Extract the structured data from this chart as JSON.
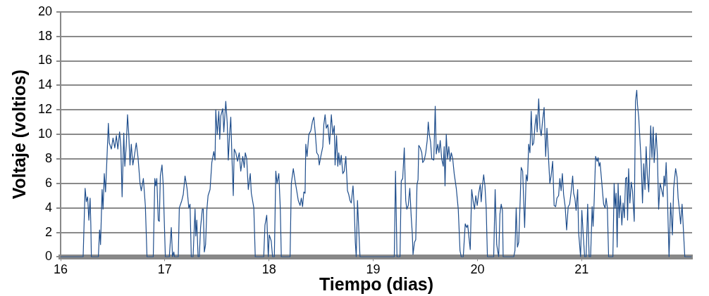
{
  "chart_data": {
    "type": "line",
    "xlabel": "Tiempo (dias)",
    "ylabel": "Voltaje (voltios)",
    "xlim": [
      16,
      22.06
    ],
    "xticks": [
      16,
      17,
      18,
      19,
      20,
      21
    ],
    "ylim": [
      0,
      20
    ],
    "yticks": [
      0,
      2,
      4,
      6,
      8,
      10,
      12,
      14,
      16,
      18,
      20
    ],
    "grid": "y",
    "legend": false,
    "marker": "none",
    "line_style": "solid",
    "series": [
      {
        "color": "#1f4e8c",
        "x": [
          16,
          16.216,
          16.235,
          16.247,
          16.259,
          16.271,
          16.283,
          16.29,
          16.295,
          16.362,
          16.374,
          16.383,
          16.398,
          16.407,
          16.419,
          16.431,
          16.441,
          16.458,
          16.467,
          16.487,
          16.503,
          16.52,
          16.535,
          16.549,
          16.566,
          16.578,
          16.59,
          16.606,
          16.616,
          16.63,
          16.642,
          16.654,
          16.666,
          16.678,
          16.693,
          16.707,
          16.726,
          16.743,
          16.762,
          16.774,
          16.794,
          16.813,
          16.829,
          16.889,
          16.904,
          16.913,
          16.923,
          16.937,
          16.947,
          16.957,
          16.973,
          16.985,
          17.005,
          17.043,
          17.062,
          17.074,
          17.086,
          17.093,
          17.129,
          17.139,
          17.163,
          17.177,
          17.194,
          17.213,
          17.23,
          17.242,
          17.254,
          17.271,
          17.29,
          17.297,
          17.307,
          17.319,
          17.331,
          17.343,
          17.36,
          17.369,
          17.379,
          17.391,
          17.403,
          17.415,
          17.434,
          17.451,
          17.47,
          17.482,
          17.489,
          17.503,
          17.518,
          17.527,
          17.537,
          17.556,
          17.566,
          17.585,
          17.599,
          17.609,
          17.621,
          17.633,
          17.645,
          17.657,
          17.666,
          17.681,
          17.698,
          17.714,
          17.729,
          17.748,
          17.762,
          17.772,
          17.786,
          17.801,
          17.82,
          17.83,
          17.854,
          17.868,
          17.949,
          17.961,
          17.978,
          17.993,
          18.002,
          18.021,
          18.034,
          18.051,
          18.065,
          18.077,
          18.094,
          18.108,
          18.118,
          18.202,
          18.214,
          18.233,
          18.25,
          18.262,
          18.281,
          18.298,
          18.31,
          18.322,
          18.334,
          18.346,
          18.353,
          18.365,
          18.382,
          18.401,
          18.418,
          18.43,
          18.444,
          18.458,
          18.473,
          18.482,
          18.497,
          18.516,
          18.526,
          18.538,
          18.55,
          18.564,
          18.581,
          18.598,
          18.612,
          18.626,
          18.634,
          18.648,
          18.66,
          18.669,
          18.681,
          18.693,
          18.708,
          18.722,
          18.737,
          18.753,
          18.765,
          18.777,
          18.789,
          18.806,
          18.818,
          18.828,
          18.837,
          18.849,
          18.873,
          19.202,
          19.214,
          19.228,
          19.257,
          19.269,
          19.283,
          19.298,
          19.312,
          19.322,
          19.336,
          19.351,
          19.365,
          19.375,
          19.382,
          19.396,
          19.408,
          19.42,
          19.43,
          19.437,
          19.451,
          19.466,
          19.475,
          19.49,
          19.504,
          19.518,
          19.528,
          19.538,
          19.55,
          19.562,
          19.581,
          19.595,
          19.605,
          19.619,
          19.631,
          19.643,
          19.657,
          19.672,
          19.681,
          19.689,
          19.701,
          19.713,
          19.725,
          19.737,
          19.749,
          19.763,
          19.777,
          19.797,
          19.816,
          19.833,
          19.845,
          19.864,
          19.883,
          19.897,
          19.907,
          19.916,
          19.931,
          19.945,
          19.96,
          19.972,
          19.984,
          19.998,
          20.012,
          20.027,
          20.036,
          20.048,
          20.06,
          20.072,
          20.084,
          20.096,
          20.156,
          20.17,
          20.185,
          20.204,
          20.216,
          20.228,
          20.24,
          20.247,
          20.348,
          20.36,
          20.372,
          20.384,
          20.396,
          20.408,
          20.42,
          20.434,
          20.453,
          20.468,
          20.48,
          20.492,
          20.504,
          20.516,
          20.528,
          20.54,
          20.552,
          20.564,
          20.573,
          20.588,
          20.6,
          20.612,
          20.624,
          20.64,
          20.655,
          20.667,
          20.679,
          20.695,
          20.707,
          20.722,
          20.736,
          20.751,
          20.763,
          20.779,
          20.791,
          20.803,
          20.815,
          20.827,
          20.842,
          20.856,
          20.871,
          20.885,
          20.899,
          20.914,
          20.923,
          20.935,
          20.947,
          20.962,
          20.971,
          20.99,
          21.002,
          21.014,
          21.029,
          21.043,
          21.058,
          21.072,
          21.086,
          21.101,
          21.11,
          21.12,
          21.134,
          21.149,
          21.158,
          21.168,
          21.177,
          21.192,
          21.211,
          21.225,
          21.235,
          21.247,
          21.259,
          21.3,
          21.312,
          21.321,
          21.331,
          21.341,
          21.35,
          21.36,
          21.372,
          21.386,
          21.398,
          21.41,
          21.422,
          21.433,
          21.441,
          21.451,
          21.463,
          21.476,
          21.488,
          21.505,
          21.517,
          21.529,
          21.536,
          21.548,
          21.56,
          21.572,
          21.584,
          21.596,
          21.608,
          21.619,
          21.631,
          21.644,
          21.663,
          21.675,
          21.687,
          21.696,
          21.715,
          21.727,
          21.739,
          21.753,
          21.767,
          21.782,
          21.791,
          21.801,
          21.811,
          21.823,
          21.839,
          21.854,
          21.871,
          21.883,
          21.902,
          21.916,
          21.926,
          21.935,
          21.95,
          21.964,
          21.978,
          21.99,
          22.055
        ],
        "values": [
          0,
          0,
          5.6,
          4.5,
          4.9,
          3.0,
          4.8,
          2.6,
          0,
          0,
          2.2,
          1.0,
          5.5,
          3.9,
          6.8,
          5.3,
          7.3,
          10.9,
          9.3,
          8.8,
          9.7,
          8.9,
          9.9,
          8.8,
          10.2,
          9.0,
          4.9,
          10.1,
          7.4,
          9.1,
          11.6,
          10.0,
          7.5,
          9.2,
          7.5,
          8.2,
          9.3,
          8.1,
          6.0,
          5.4,
          6.4,
          4.2,
          0,
          0,
          6.4,
          5.8,
          6.4,
          3.0,
          2.9,
          6.6,
          7.5,
          5.8,
          0,
          0,
          2.4,
          0,
          0.4,
          0,
          0,
          4.0,
          4.6,
          5.1,
          6.6,
          5.6,
          4.0,
          4.3,
          0,
          0,
          3.9,
          1.7,
          3.0,
          0,
          0,
          2.4,
          3.9,
          3.9,
          0.4,
          1.0,
          3.8,
          5.0,
          5.5,
          7.7,
          8.6,
          7.9,
          12.0,
          10.0,
          11.9,
          9.6,
          11.5,
          12.1,
          10.2,
          12.7,
          10.9,
          7.9,
          9.9,
          11.4,
          7.9,
          5.0,
          8.8,
          8.5,
          7.8,
          8.5,
          7.0,
          8.2,
          7.3,
          8.5,
          8.0,
          5.5,
          6.8,
          5.2,
          4.0,
          0,
          0,
          2.6,
          3.4,
          0,
          1.8,
          1.3,
          0,
          0,
          7.0,
          6.0,
          6.8,
          4.0,
          0,
          0,
          6.0,
          7.2,
          6.2,
          5.6,
          4.6,
          4.2,
          4.8,
          4.1,
          5.3,
          5.2,
          9.2,
          8.2,
          10.0,
          10.3,
          11.1,
          11.4,
          10.1,
          8.5,
          8.3,
          7.5,
          8.2,
          9.0,
          10.8,
          11.6,
          10.5,
          10.8,
          9.2,
          11.6,
          10.0,
          10.7,
          7.5,
          9.9,
          7.4,
          8.5,
          7.5,
          8.3,
          6.8,
          7.0,
          8.2,
          5.4,
          5.1,
          4.6,
          4.4,
          5.8,
          4.0,
          1.2,
          0,
          4.6,
          0,
          0,
          7.0,
          0,
          0,
          6.2,
          6.4,
          8.9,
          4.6,
          3.9,
          4.2,
          5.6,
          3.2,
          1.9,
          0.2,
          1.2,
          1.4,
          5.9,
          6.3,
          9.1,
          8.9,
          8.5,
          7.7,
          7.9,
          8.5,
          9.5,
          11.0,
          10.0,
          9.4,
          8.0,
          7.9,
          12.3,
          8.4,
          9.2,
          8.5,
          9.5,
          8.0,
          7.4,
          9.0,
          5.8,
          10.0,
          8.0,
          9.0,
          7.8,
          8.5,
          8.0,
          6.8,
          5.6,
          3.9,
          0.5,
          0,
          0,
          2.7,
          2.4,
          2.6,
          1.8,
          0.6,
          5.5,
          4.5,
          3.9,
          5.0,
          4.2,
          5.2,
          5.9,
          4.5,
          5.8,
          6.7,
          5.8,
          4.0,
          0,
          0,
          5.5,
          1.0,
          0,
          3.5,
          4.3,
          3.8,
          0,
          0,
          0.5,
          4.0,
          0.8,
          1.2,
          4.0,
          7.3,
          7.0,
          2.4,
          6.7,
          6.2,
          9.2,
          8.5,
          11.9,
          9.1,
          9.3,
          10.7,
          11.6,
          10.2,
          12.9,
          10.5,
          9.9,
          11.0,
          12.2,
          8.2,
          10.5,
          8.6,
          6.0,
          6.6,
          7.8,
          4.2,
          4.1,
          4.8,
          5.0,
          6.4,
          5.4,
          6.8,
          5.1,
          4.1,
          2.2,
          4.1,
          4.3,
          5.3,
          6.6,
          5.2,
          4.8,
          3.8,
          5.5,
          2.0,
          0,
          3.8,
          2.0,
          0,
          0,
          4.3,
          0,
          0,
          4.1,
          2.5,
          4.5,
          8.2,
          7.8,
          8.1,
          7.4,
          7.7,
          6.2,
          4.3,
          4.0,
          4.8,
          4.0,
          0,
          0,
          6.0,
          4.0,
          5.2,
          0.8,
          6.0,
          3.2,
          5.0,
          2.6,
          4.4,
          3.2,
          6.4,
          6.5,
          3.0,
          7.2,
          4.4,
          6.1,
          5.4,
          2.9,
          12.7,
          13.6,
          12.4,
          11.4,
          9.5,
          7.6,
          4.4,
          7.6,
          5.5,
          9.0,
          6.6,
          5.3,
          10.7,
          8.1,
          10.6,
          7.7,
          10.1,
          8.3,
          3.9,
          6.0,
          5.5,
          4.9,
          6.6,
          5.8,
          7.7,
          5.0,
          0,
          4.4,
          1.8,
          5.6,
          7.2,
          6.5,
          4.8,
          4.1,
          2.7,
          4.3,
          2.0,
          0,
          0
        ]
      }
    ]
  }
}
